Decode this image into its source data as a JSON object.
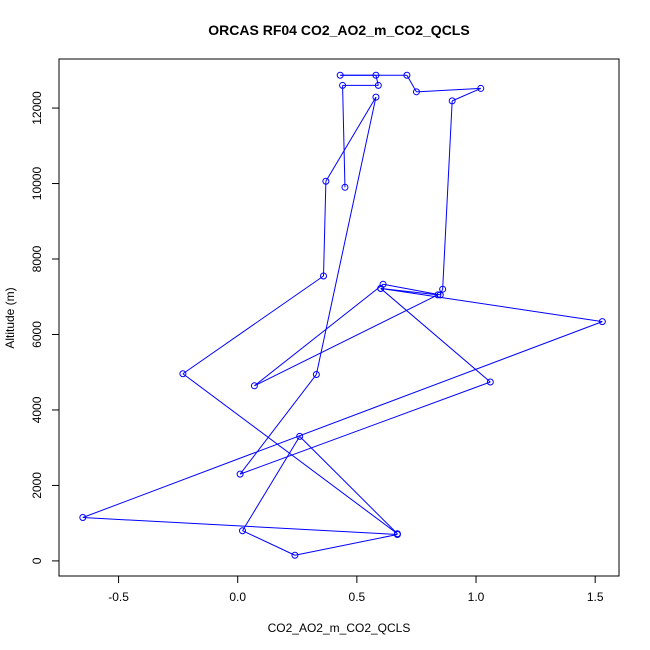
{
  "chart_data": {
    "type": "line",
    "title": "ORCAS RF04 CO2_AO2_m_CO2_QCLS",
    "xlabel": "CO2_AO2_m_CO2_QCLS",
    "ylabel": "Altitude (m)",
    "xlim": [
      -0.75,
      1.6
    ],
    "ylim": [
      -400,
      13300
    ],
    "x_ticks": [
      -0.5,
      0.0,
      0.5,
      1.0,
      1.5
    ],
    "x_tick_labels": [
      "-0.5",
      "0.0",
      "0.5",
      "1.0",
      "1.5"
    ],
    "y_ticks": [
      0,
      2000,
      4000,
      6000,
      8000,
      10000,
      12000
    ],
    "y_tick_labels": [
      "0",
      "2000",
      "4000",
      "6000",
      "8000",
      "10000",
      "12000"
    ],
    "line_color": "#0000ff",
    "marker": "open-circle",
    "grid": false,
    "series": [
      {
        "x": [
          0.45,
          0.44,
          0.59,
          0.58,
          0.43,
          0.71,
          0.75,
          1.02,
          0.9,
          0.86,
          0.85,
          0.61,
          0.07,
          0.84,
          0.6,
          1.53,
          -0.65,
          0.67,
          0.24,
          0.02,
          0.26,
          0.67,
          -0.23,
          0.36,
          0.37,
          0.58,
          0.33,
          0.01,
          1.06,
          0.6
        ],
        "y": [
          9900,
          12600,
          12600,
          12870,
          12870,
          12870,
          12430,
          12520,
          12190,
          7200,
          7050,
          7330,
          4640,
          7050,
          7220,
          6340,
          1150,
          700,
          150,
          800,
          3300,
          720,
          4960,
          7550,
          10060,
          12290,
          4940,
          2300,
          4740,
          7220
        ]
      }
    ]
  }
}
